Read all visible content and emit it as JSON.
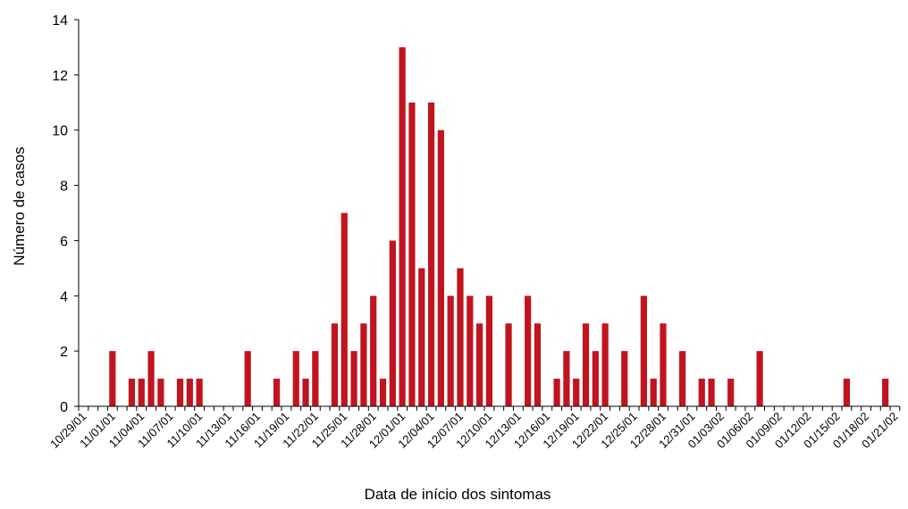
{
  "chart_data": {
    "type": "bar",
    "xlabel": "Data de início dos sintomas",
    "ylabel": "Número de casos",
    "ylim": [
      0,
      14
    ],
    "y_ticks": [
      0,
      2,
      4,
      6,
      8,
      10,
      12,
      14
    ],
    "x_start_label": "10/29/01",
    "x_tick_labels": [
      "10/29/01",
      "11/01/01",
      "11/04/01",
      "11/07/01",
      "11/10/01",
      "11/13/01",
      "11/16/01",
      "11/19/01",
      "11/22/01",
      "11/25/01",
      "11/28/01",
      "12/01/01",
      "12/04/01",
      "12/07/01",
      "12/10/01",
      "12/13/01",
      "12/16/01",
      "12/19/01",
      "12/22/01",
      "12/25/01",
      "12/28/01",
      "12/31/01",
      "01/03/02",
      "01/06/02",
      "01/09/02",
      "01/12/02",
      "01/15/02",
      "01/18/02",
      "01/21/02"
    ],
    "bar_color": "#c0141f",
    "grid": false,
    "values": [
      0,
      0,
      0,
      2,
      0,
      1,
      1,
      2,
      1,
      0,
      1,
      1,
      1,
      0,
      0,
      0,
      0,
      2,
      0,
      0,
      1,
      0,
      2,
      1,
      2,
      0,
      3,
      7,
      2,
      3,
      4,
      1,
      6,
      13,
      11,
      5,
      11,
      10,
      4,
      5,
      4,
      3,
      4,
      0,
      3,
      0,
      4,
      3,
      0,
      1,
      2,
      1,
      3,
      2,
      3,
      0,
      2,
      0,
      4,
      1,
      3,
      0,
      2,
      0,
      1,
      1,
      0,
      1,
      0,
      0,
      2,
      0,
      0,
      0,
      0,
      0,
      0,
      0,
      0,
      1,
      0,
      0,
      0,
      1,
      0
    ]
  }
}
